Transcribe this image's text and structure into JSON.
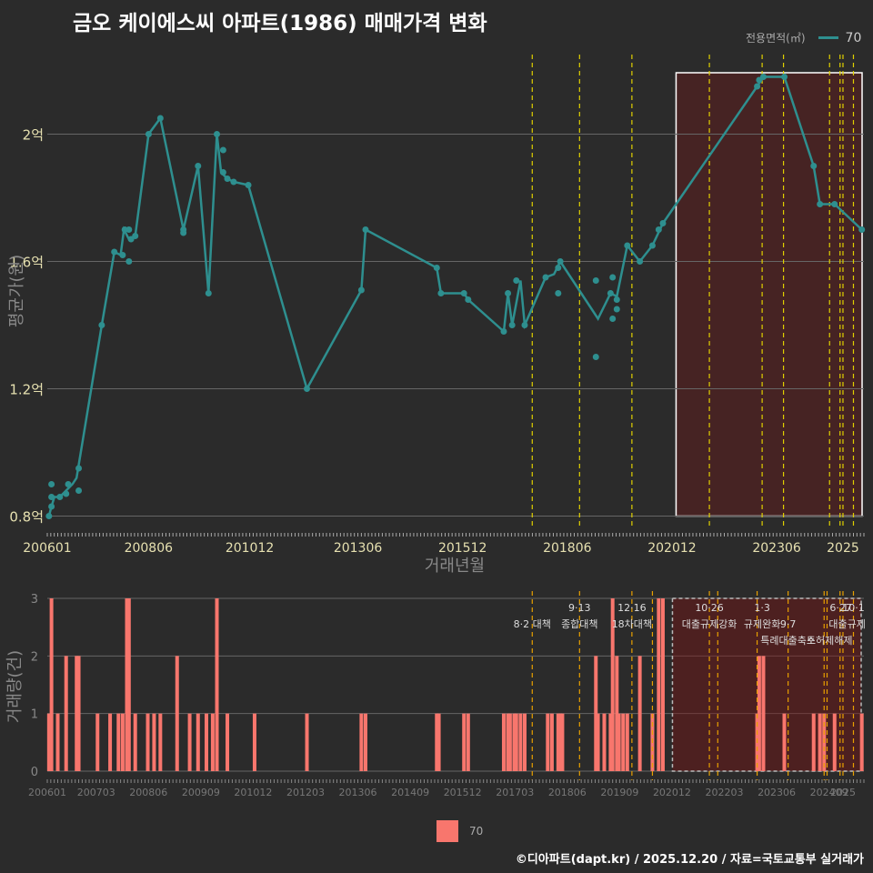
{
  "title": "금오 케이에스씨 아파트(1986) 매매가격 변화",
  "legend": {
    "title": "전용면적(㎡)",
    "series_name": "70",
    "line_color": "#2e8f8f",
    "bar_color": "#f8766d"
  },
  "caption": "©디아파트(dapt.kr) / 2025.12.20 / 자료=국토교통부 실거래가",
  "chart_data": [
    {
      "type": "line",
      "xlabel": "거래년월",
      "ylabel": "평균가(원)",
      "x_range": [
        2006.0,
        2025.5
      ],
      "ylim": [
        0.77,
        2.25
      ],
      "y_ticks": [
        0.8,
        1.2,
        1.6,
        2.0
      ],
      "y_tick_labels": [
        "0.8억",
        "1.2억",
        "1.6억",
        "2억"
      ],
      "x_ticks": [
        2006.0,
        2008.417,
        2010.833,
        2013.417,
        2015.917,
        2018.417,
        2020.917,
        2023.417,
        2025.0
      ],
      "x_tick_labels": [
        "200601",
        "200806",
        "201012",
        "201306",
        "201512",
        "201806",
        "202012",
        "202306",
        "2025"
      ],
      "line": [
        [
          2006.04,
          0.8
        ],
        [
          2006.1,
          0.83
        ],
        [
          2006.17,
          0.86
        ],
        [
          2006.3,
          0.86
        ],
        [
          2006.45,
          0.88
        ],
        [
          2006.6,
          0.9
        ],
        [
          2006.7,
          0.92
        ],
        [
          2007.3,
          1.4
        ],
        [
          2007.6,
          1.63
        ],
        [
          2007.75,
          1.62
        ],
        [
          2007.83,
          1.7
        ],
        [
          2007.95,
          1.67
        ],
        [
          2008.1,
          1.68
        ],
        [
          2008.42,
          2.0
        ],
        [
          2008.7,
          2.05
        ],
        [
          2009.25,
          1.7
        ],
        [
          2009.6,
          1.9
        ],
        [
          2009.85,
          1.5
        ],
        [
          2010.05,
          2.0
        ],
        [
          2010.15,
          1.88
        ],
        [
          2010.3,
          1.86
        ],
        [
          2010.45,
          1.85
        ],
        [
          2010.8,
          1.84
        ],
        [
          2012.2,
          1.2
        ],
        [
          2013.5,
          1.51
        ],
        [
          2013.6,
          1.7
        ],
        [
          2015.3,
          1.58
        ],
        [
          2015.4,
          1.5
        ],
        [
          2015.95,
          1.5
        ],
        [
          2016.05,
          1.48
        ],
        [
          2016.9,
          1.38
        ],
        [
          2017.0,
          1.5
        ],
        [
          2017.1,
          1.4
        ],
        [
          2017.3,
          1.54
        ],
        [
          2017.4,
          1.4
        ],
        [
          2017.9,
          1.55
        ],
        [
          2018.1,
          1.56
        ],
        [
          2018.25,
          1.6
        ],
        [
          2019.15,
          1.42
        ],
        [
          2019.45,
          1.5
        ],
        [
          2019.6,
          1.49
        ],
        [
          2019.85,
          1.65
        ],
        [
          2020.15,
          1.6
        ],
        [
          2020.45,
          1.65
        ],
        [
          2020.7,
          1.72
        ],
        [
          2022.95,
          2.15
        ],
        [
          2023.1,
          2.18
        ],
        [
          2023.6,
          2.18
        ],
        [
          2024.3,
          1.9
        ],
        [
          2024.45,
          1.78
        ],
        [
          2024.8,
          1.78
        ],
        [
          2025.45,
          1.7
        ]
      ],
      "points": [
        [
          2006.04,
          0.8
        ],
        [
          2006.1,
          0.83
        ],
        [
          2006.1,
          0.86
        ],
        [
          2006.1,
          0.9
        ],
        [
          2006.3,
          0.86
        ],
        [
          2006.45,
          0.87
        ],
        [
          2006.5,
          0.9
        ],
        [
          2006.75,
          0.88
        ],
        [
          2006.75,
          0.95
        ],
        [
          2007.3,
          1.4
        ],
        [
          2007.6,
          1.63
        ],
        [
          2007.8,
          1.62
        ],
        [
          2007.85,
          1.7
        ],
        [
          2007.95,
          1.7
        ],
        [
          2007.95,
          1.6
        ],
        [
          2008.0,
          1.67
        ],
        [
          2008.1,
          1.68
        ],
        [
          2008.42,
          2.0
        ],
        [
          2008.7,
          2.05
        ],
        [
          2009.25,
          1.7
        ],
        [
          2009.25,
          1.69
        ],
        [
          2009.6,
          1.9
        ],
        [
          2009.85,
          1.5
        ],
        [
          2010.05,
          2.0
        ],
        [
          2010.2,
          1.95
        ],
        [
          2010.2,
          1.88
        ],
        [
          2010.3,
          1.86
        ],
        [
          2010.45,
          1.85
        ],
        [
          2010.8,
          1.84
        ],
        [
          2012.2,
          1.2
        ],
        [
          2013.5,
          1.51
        ],
        [
          2013.6,
          1.7
        ],
        [
          2015.3,
          1.58
        ],
        [
          2015.4,
          1.5
        ],
        [
          2015.95,
          1.5
        ],
        [
          2016.05,
          1.48
        ],
        [
          2016.9,
          1.38
        ],
        [
          2017.0,
          1.5
        ],
        [
          2017.1,
          1.4
        ],
        [
          2017.2,
          1.54
        ],
        [
          2017.4,
          1.4
        ],
        [
          2017.9,
          1.55
        ],
        [
          2018.2,
          1.58
        ],
        [
          2018.2,
          1.5
        ],
        [
          2018.25,
          1.6
        ],
        [
          2019.1,
          1.54
        ],
        [
          2019.1,
          1.3
        ],
        [
          2019.45,
          1.5
        ],
        [
          2019.5,
          1.55
        ],
        [
          2019.5,
          1.42
        ],
        [
          2019.6,
          1.48
        ],
        [
          2019.6,
          1.45
        ],
        [
          2019.85,
          1.65
        ],
        [
          2020.15,
          1.6
        ],
        [
          2020.45,
          1.65
        ],
        [
          2020.6,
          1.7
        ],
        [
          2020.7,
          1.72
        ],
        [
          2022.95,
          2.15
        ],
        [
          2023.0,
          2.17
        ],
        [
          2023.1,
          2.18
        ],
        [
          2023.6,
          2.18
        ],
        [
          2024.3,
          1.9
        ],
        [
          2024.45,
          1.78
        ],
        [
          2024.8,
          1.78
        ],
        [
          2025.45,
          1.7
        ]
      ],
      "highlight_range": [
        2020.95,
        2025.5
      ],
      "policy_lines": [
        2017.58,
        2018.71,
        2019.96,
        2021.81,
        2023.07,
        2023.58,
        2024.68,
        2024.93,
        2025.0,
        2025.25
      ]
    },
    {
      "type": "bar",
      "xlabel": "",
      "ylabel": "거래량(건)",
      "x_range": [
        2006.0,
        2025.5
      ],
      "ylim": [
        0,
        3
      ],
      "y_ticks": [
        0,
        1,
        2,
        3
      ],
      "y_tick_labels": [
        "0",
        "1",
        "2",
        "3"
      ],
      "x_ticks": [
        2006.0,
        2007.167,
        2008.417,
        2009.667,
        2010.917,
        2012.167,
        2013.417,
        2014.667,
        2015.917,
        2017.167,
        2018.417,
        2019.667,
        2020.917,
        2022.167,
        2023.417,
        2024.667,
        2025.0
      ],
      "x_tick_labels": [
        "200601",
        "200703",
        "200806",
        "200909",
        "201012",
        "201203",
        "201306",
        "201409",
        "201512",
        "201703",
        "201806",
        "201909",
        "202012",
        "202203",
        "202306",
        "202409",
        "2025"
      ],
      "bars": [
        [
          2006.04,
          1
        ],
        [
          2006.1,
          3
        ],
        [
          2006.25,
          1
        ],
        [
          2006.45,
          2
        ],
        [
          2006.7,
          2
        ],
        [
          2006.75,
          2
        ],
        [
          2007.2,
          1
        ],
        [
          2007.5,
          1
        ],
        [
          2007.7,
          1
        ],
        [
          2007.8,
          1
        ],
        [
          2007.9,
          3
        ],
        [
          2007.95,
          3
        ],
        [
          2008.1,
          1
        ],
        [
          2008.4,
          1
        ],
        [
          2008.55,
          1
        ],
        [
          2008.7,
          1
        ],
        [
          2009.1,
          2
        ],
        [
          2009.4,
          1
        ],
        [
          2009.6,
          1
        ],
        [
          2009.8,
          1
        ],
        [
          2009.95,
          1
        ],
        [
          2010.05,
          3
        ],
        [
          2010.3,
          1
        ],
        [
          2010.95,
          1
        ],
        [
          2012.2,
          1
        ],
        [
          2013.5,
          1
        ],
        [
          2013.6,
          1
        ],
        [
          2015.3,
          1
        ],
        [
          2015.35,
          1
        ],
        [
          2015.95,
          1
        ],
        [
          2016.05,
          1
        ],
        [
          2016.9,
          1
        ],
        [
          2017.0,
          1
        ],
        [
          2017.05,
          1
        ],
        [
          2017.15,
          1
        ],
        [
          2017.2,
          1
        ],
        [
          2017.3,
          1
        ],
        [
          2017.4,
          1
        ],
        [
          2017.95,
          1
        ],
        [
          2018.05,
          1
        ],
        [
          2018.2,
          1
        ],
        [
          2018.25,
          1
        ],
        [
          2018.3,
          1
        ],
        [
          2019.1,
          2
        ],
        [
          2019.15,
          1
        ],
        [
          2019.3,
          1
        ],
        [
          2019.45,
          1
        ],
        [
          2019.5,
          3
        ],
        [
          2019.6,
          2
        ],
        [
          2019.65,
          1
        ],
        [
          2019.75,
          1
        ],
        [
          2019.85,
          1
        ],
        [
          2020.15,
          2
        ],
        [
          2020.45,
          1
        ],
        [
          2020.6,
          3
        ],
        [
          2020.7,
          3
        ],
        [
          2022.95,
          1
        ],
        [
          2023.0,
          2
        ],
        [
          2023.1,
          2
        ],
        [
          2023.6,
          1
        ],
        [
          2024.3,
          1
        ],
        [
          2024.45,
          1
        ],
        [
          2024.55,
          1
        ],
        [
          2024.8,
          1
        ],
        [
          2025.45,
          1
        ]
      ],
      "highlight_range": [
        2020.95,
        2025.5
      ],
      "policy_lines": [
        2017.58,
        2018.71,
        2019.96,
        2020.45,
        2021.81,
        2022.01,
        2022.95,
        2023.69,
        2024.55,
        2024.62,
        2024.93,
        2025.0,
        2025.25
      ],
      "policy_labels": [
        {
          "x": 2017.58,
          "text": "8·2 대책",
          "row": 1
        },
        {
          "x": 2018.71,
          "text": "9·13",
          "row": 0
        },
        {
          "x": 2018.71,
          "text": "종합대책",
          "row": 1
        },
        {
          "x": 2019.96,
          "text": "12·16",
          "row": 0
        },
        {
          "x": 2019.96,
          "text": "18차대책",
          "row": 1
        },
        {
          "x": 2021.81,
          "text": "10·26",
          "row": 0
        },
        {
          "x": 2021.81,
          "text": "대출규제강화",
          "row": 1
        },
        {
          "x": 2023.07,
          "text": "1·3",
          "row": 0
        },
        {
          "x": 2023.07,
          "text": "규제완화",
          "row": 1
        },
        {
          "x": 2023.69,
          "text": "9·7",
          "row": 1
        },
        {
          "x": 2023.69,
          "text": "특례대출축소",
          "row": 2
        },
        {
          "x": 2024.68,
          "text": "토허제해제",
          "row": 2
        },
        {
          "x": 2024.95,
          "text": "6·27",
          "row": 0
        },
        {
          "x": 2025.25,
          "text": "10·1",
          "row": 0
        },
        {
          "x": 2025.1,
          "text": "대출규제",
          "row": 1
        }
      ]
    }
  ]
}
